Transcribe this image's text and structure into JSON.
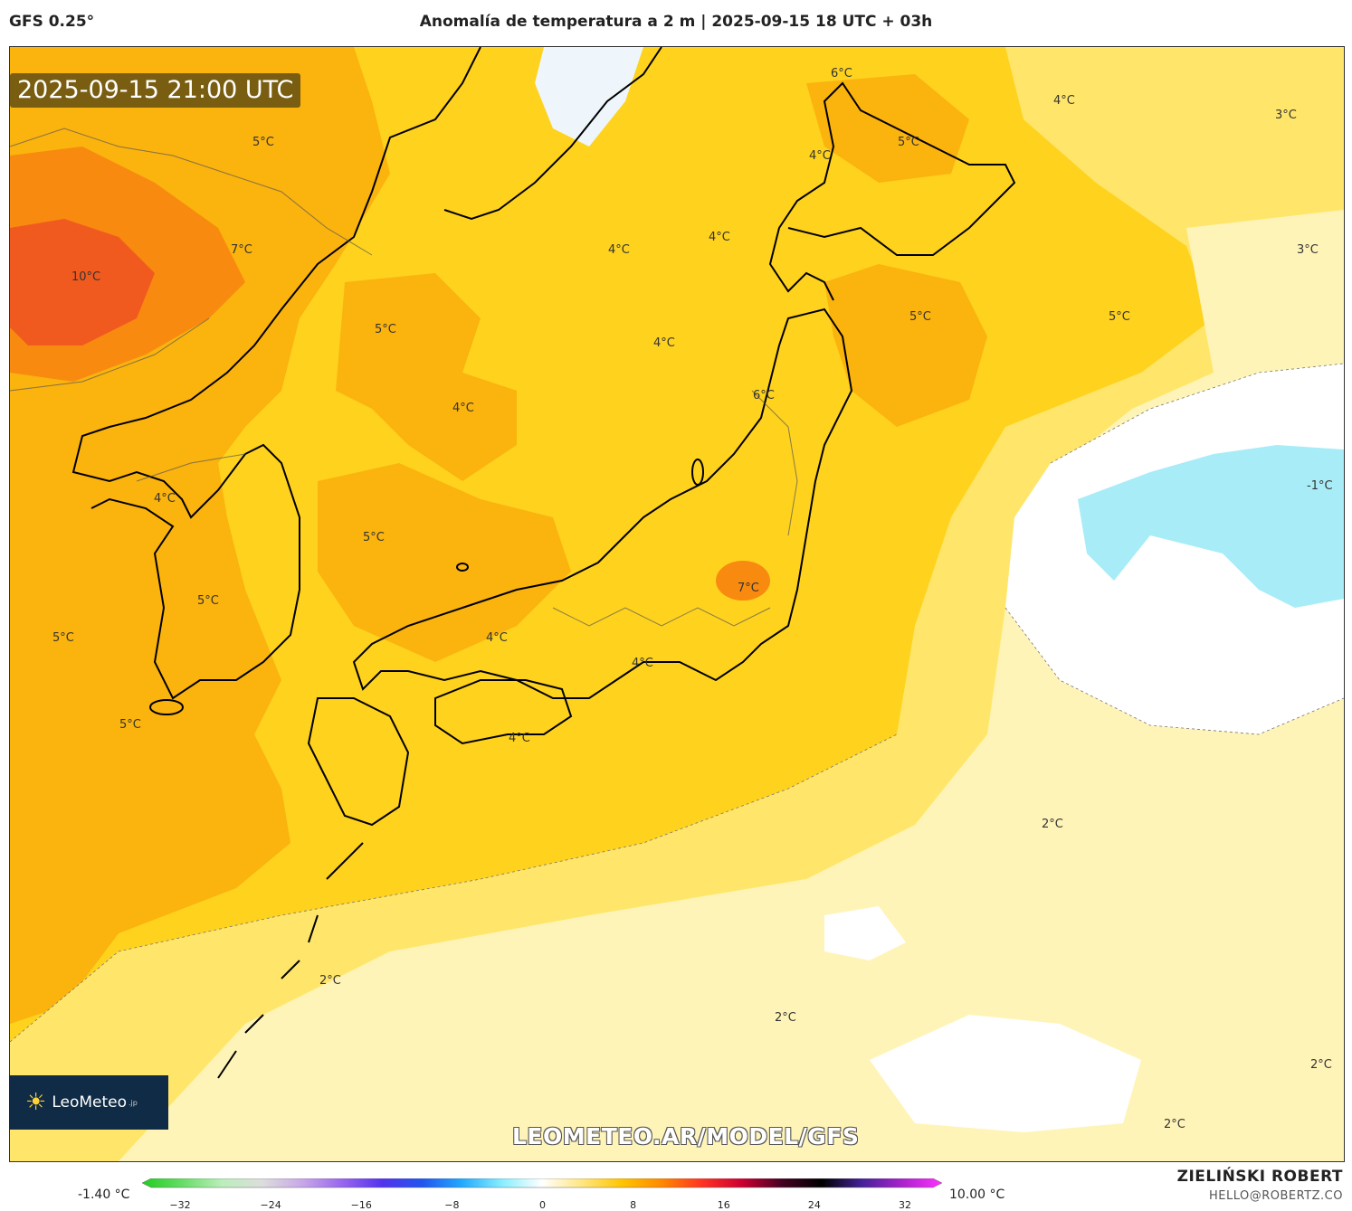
{
  "header": {
    "model": "GFS 0.25°",
    "title": "Anomalía de temperatura a 2 m | 2025-09-15 18 UTC + 03h"
  },
  "map": {
    "timestamp": "2025-09-15 21:00 UTC",
    "labels": [
      "5°C",
      "7°C",
      "10°C",
      "5°C",
      "4°C",
      "4°C",
      "5°C",
      "4°C",
      "4°C",
      "5°C",
      "4°C",
      "6°C",
      "5°C",
      "4°C",
      "3°C",
      "3°C",
      "6°C",
      "5°C",
      "5°C",
      "4°C",
      "-1°C",
      "7°C",
      "5°C",
      "4°C",
      "4°C",
      "5°C",
      "4°C",
      "2°C",
      "2°C",
      "2°C",
      "2°C",
      "2°C"
    ],
    "colors": {
      "anomaly_10": "#f05a1e",
      "anomaly_7": "#f88a10",
      "anomaly_5": "#fbb30e",
      "anomaly_4": "#ffd21e",
      "anomaly_3": "#ffe66a",
      "anomaly_2": "#fff4b8",
      "anomaly_0": "#ffffff",
      "anomaly_neg1": "#a8ecf8",
      "coastline": "#000000",
      "borders": "#555555"
    }
  },
  "branding": {
    "logo_name": "LeoMeteo",
    "logo_sub": ".jp",
    "watermark": "LEOMETEO.AR/MODEL/GFS"
  },
  "legend": {
    "min_label": "-1.40 °C",
    "max_label": "10.00 °C",
    "ticks": [
      "−32",
      "−24",
      "−16",
      "−8",
      "0",
      "8",
      "16",
      "24",
      "32"
    ],
    "gradient_colors": [
      "#22cc22",
      "#66dd66",
      "#bbeebb",
      "#dddddd",
      "#c8a8e8",
      "#9966ee",
      "#5533ee",
      "#2255ee",
      "#22aaff",
      "#88eeff",
      "#ffffff",
      "#ffe680",
      "#ffc400",
      "#ff8800",
      "#ff3322",
      "#cc0033",
      "#440022",
      "#000000",
      "#442299",
      "#aa22cc",
      "#ff33ff"
    ]
  },
  "credit": {
    "name": "ZIELIŃSKI ROBERT",
    "email": "HELLO@ROBERTZ.CO"
  }
}
